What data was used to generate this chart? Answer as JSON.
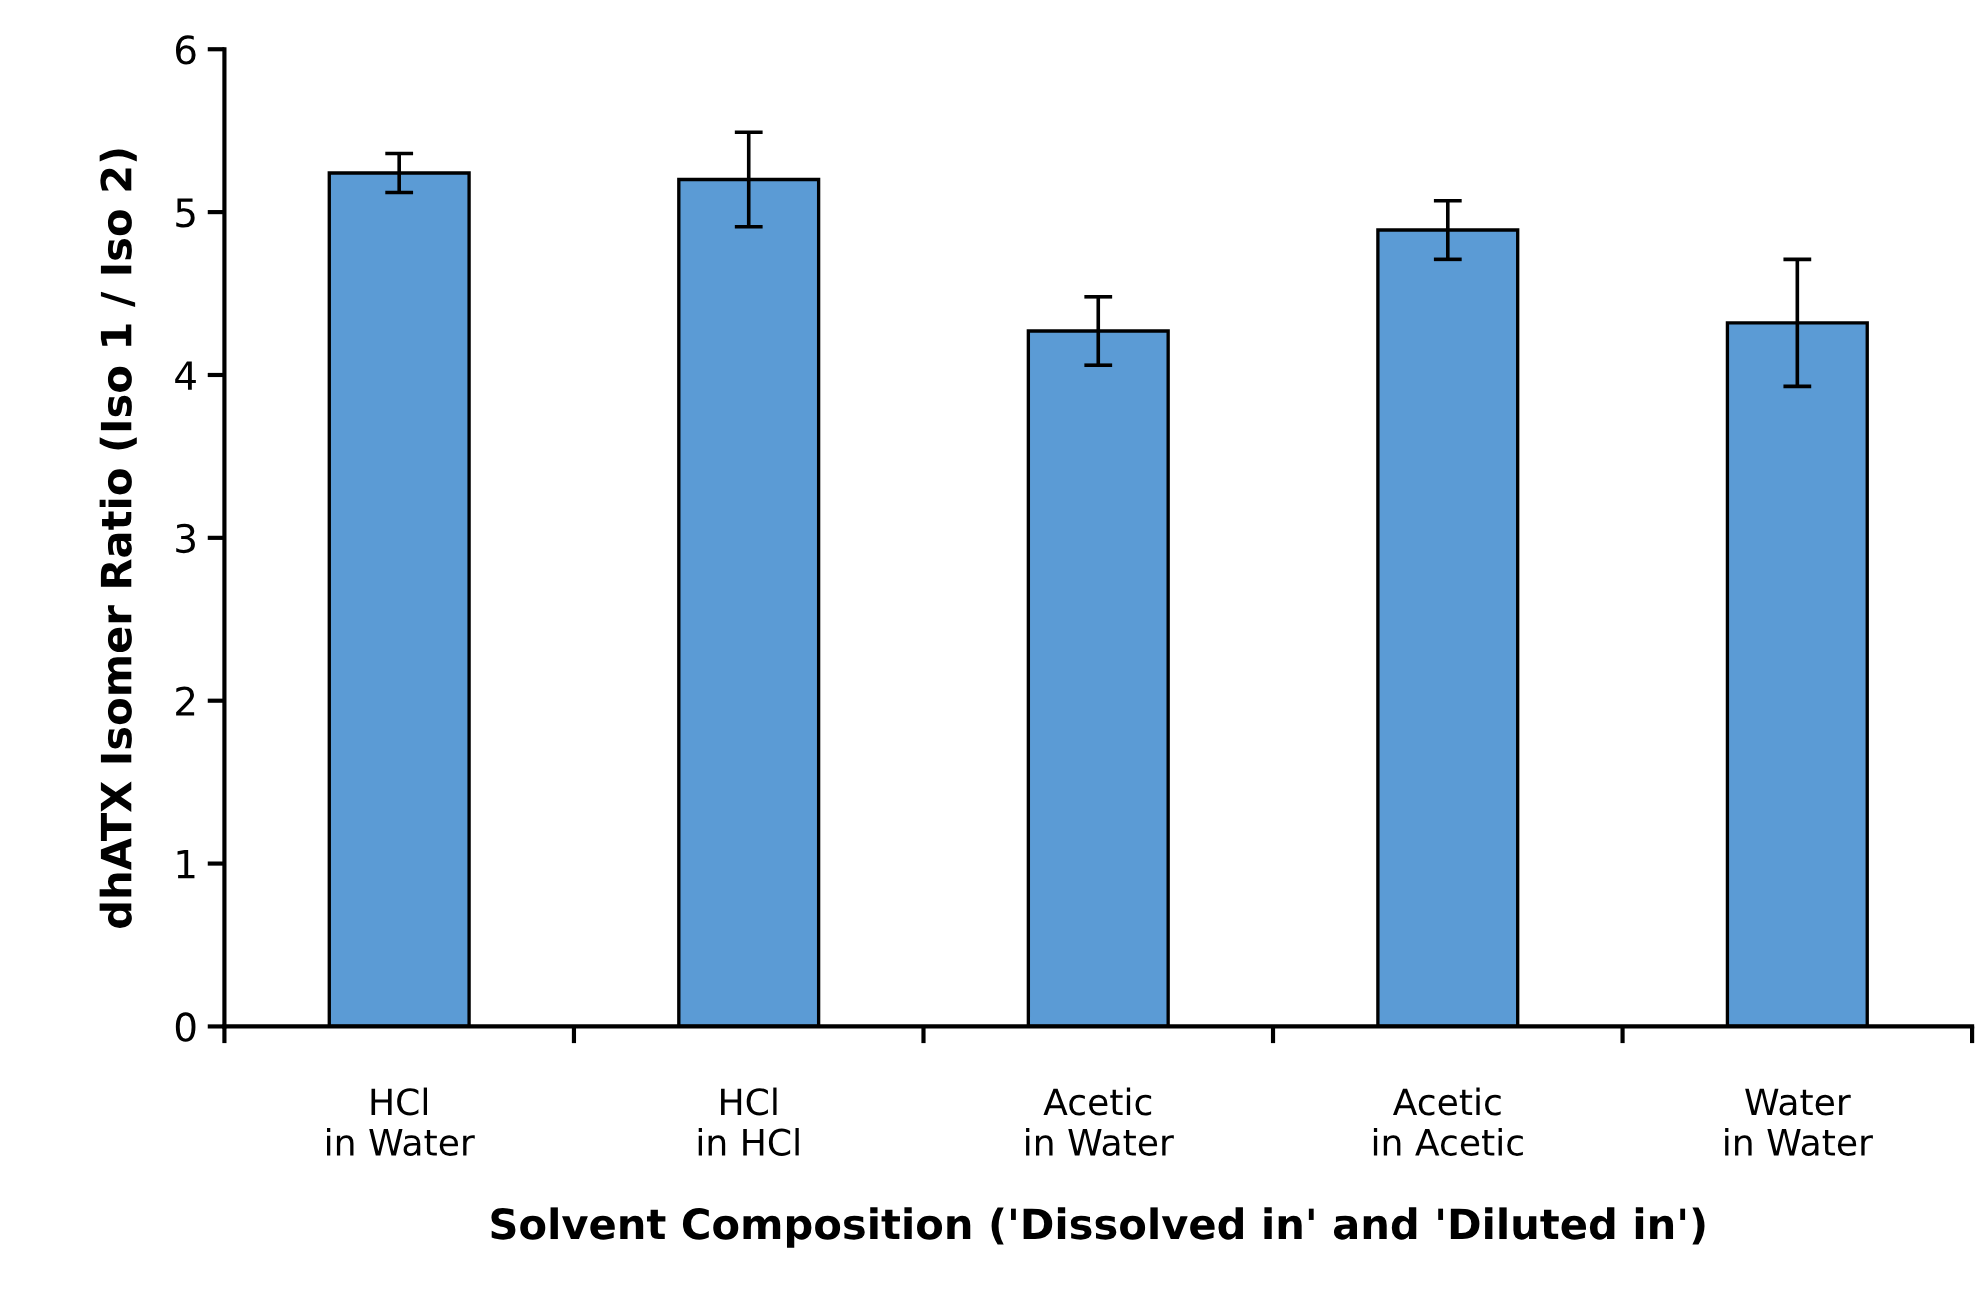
{
  "chart_data": {
    "type": "bar",
    "categories": [
      "HCl\nin Water",
      "HCl\nin HCl",
      "Acetic\nin Water",
      "Acetic\nin Acetic",
      "Water\nin Water"
    ],
    "values": [
      5.24,
      5.2,
      4.27,
      4.89,
      4.32
    ],
    "errors": [
      0.12,
      0.29,
      0.21,
      0.18,
      0.39
    ],
    "color": "#5b9bd5",
    "xlabel": "Solvent Composition ('Dissolved in' and 'Diluted in')",
    "ylabel": "dhATX Isomer Ratio (Iso 1 / Iso 2)",
    "ylim": [
      0,
      6
    ],
    "yticks": [
      0,
      1,
      2,
      3,
      4,
      5,
      6
    ],
    "grid": false,
    "legend": false
  }
}
